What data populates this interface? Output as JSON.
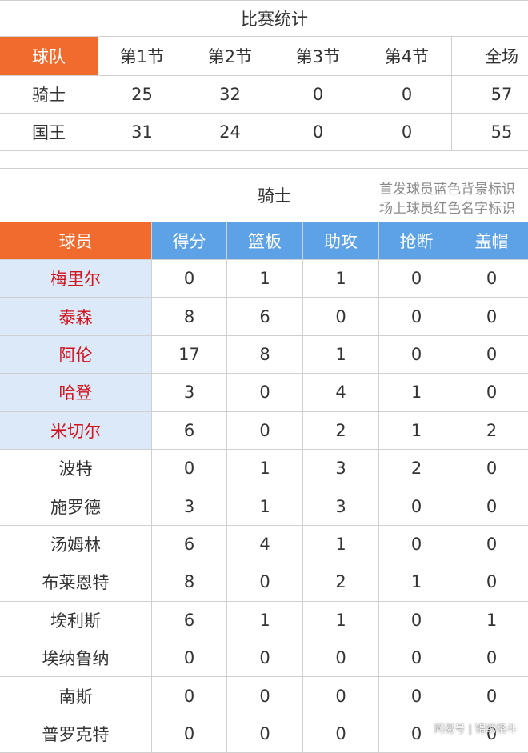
{
  "score_table": {
    "title": "比赛统计",
    "header": [
      "球队",
      "第1节",
      "第2节",
      "第3节",
      "第4节",
      "全场"
    ],
    "rows": [
      [
        "骑士",
        25,
        32,
        0,
        0,
        57
      ],
      [
        "国王",
        31,
        24,
        0,
        0,
        55
      ]
    ]
  },
  "player_table": {
    "team": "骑士",
    "notes": [
      "首发球员蓝色背景标识",
      "场上球员红色名字标识"
    ],
    "header": [
      "球员",
      "得分",
      "篮板",
      "助攻",
      "抢断",
      "盖帽"
    ],
    "rows": [
      {
        "name": "梅里尔",
        "stats": [
          0,
          1,
          1,
          0,
          0
        ],
        "starter": true
      },
      {
        "name": "泰森",
        "stats": [
          8,
          6,
          0,
          0,
          0
        ],
        "starter": true
      },
      {
        "name": "阿伦",
        "stats": [
          17,
          8,
          1,
          0,
          0
        ],
        "starter": true
      },
      {
        "name": "哈登",
        "stats": [
          3,
          0,
          4,
          1,
          0
        ],
        "starter": true
      },
      {
        "name": "米切尔",
        "stats": [
          6,
          0,
          2,
          1,
          2
        ],
        "starter": true
      },
      {
        "name": "波特",
        "stats": [
          0,
          1,
          3,
          2,
          0
        ],
        "starter": false
      },
      {
        "name": "施罗德",
        "stats": [
          3,
          1,
          3,
          0,
          0
        ],
        "starter": false
      },
      {
        "name": "汤姆林",
        "stats": [
          6,
          4,
          1,
          0,
          0
        ],
        "starter": false
      },
      {
        "name": "布莱恩特",
        "stats": [
          8,
          0,
          2,
          1,
          0
        ],
        "starter": false
      },
      {
        "name": "埃利斯",
        "stats": [
          6,
          1,
          1,
          0,
          1
        ],
        "starter": false
      },
      {
        "name": "埃纳鲁纳",
        "stats": [
          0,
          0,
          0,
          0,
          0
        ],
        "starter": false
      },
      {
        "name": "南斯",
        "stats": [
          0,
          0,
          0,
          0,
          0
        ],
        "starter": false
      },
      {
        "name": "普罗克特",
        "stats": [
          0,
          0,
          0,
          0,
          0
        ],
        "starter": false
      }
    ]
  },
  "watermark": "网易号 | 锦绣格斗"
}
